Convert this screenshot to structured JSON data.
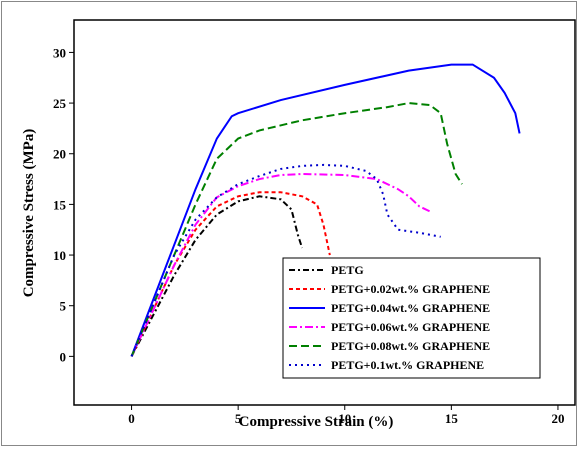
{
  "chart_data": {
    "type": "line",
    "x_label": "Compressive Strain (%)",
    "y_label": "Compressive Stress (MPa)",
    "xlim": [
      -2.7,
      20.8
    ],
    "ylim": [
      -4.8,
      33.2
    ],
    "xticks": [
      0,
      5,
      10,
      15,
      20
    ],
    "yticks": [
      0,
      5,
      10,
      15,
      20,
      25,
      30
    ],
    "legend": "lower right",
    "series": [
      {
        "name": "PETG",
        "color": "#000000",
        "dash": "6 3 2 3",
        "x": [
          0,
          1,
          2,
          3,
          4,
          5,
          6,
          7,
          7.5,
          7.8,
          8
        ],
        "values": [
          0,
          4,
          8,
          11.5,
          14,
          15.3,
          15.8,
          15.5,
          14.5,
          12,
          10.7
        ]
      },
      {
        "name": "PETG+0.02wt.% GRAPHENE",
        "color": "#ff0000",
        "dash": "4 3",
        "x": [
          0,
          1,
          2,
          3,
          4,
          5,
          6,
          7,
          8,
          8.7,
          9,
          9.2,
          9.3
        ],
        "values": [
          0,
          4.5,
          9,
          12.5,
          14.8,
          15.8,
          16.2,
          16.2,
          15.8,
          15,
          13,
          11,
          10
        ]
      },
      {
        "name": "PETG+0.04wt.% GRAPHENE",
        "color": "#0000ff",
        "dash": "none",
        "x": [
          0,
          1,
          2,
          3,
          4,
          4.7,
          5,
          7,
          10,
          13,
          15,
          16,
          17,
          17.5,
          18,
          18.2
        ],
        "values": [
          0,
          5.5,
          11,
          16.5,
          21.5,
          23.7,
          24,
          25.3,
          26.8,
          28.2,
          28.8,
          28.8,
          27.5,
          26,
          24,
          22
        ]
      },
      {
        "name": "PETG+0.06wt.% GRAPHENE",
        "color": "#ff00ff",
        "dash": "8 3 2 3",
        "x": [
          0,
          1,
          2,
          3,
          4,
          5,
          6,
          7,
          8,
          10,
          11.5,
          12.5,
          13,
          13.5,
          14
        ],
        "values": [
          0,
          4.5,
          9,
          13,
          15.7,
          16.8,
          17.5,
          17.9,
          18,
          17.9,
          17.5,
          16.5,
          15.8,
          14.8,
          14.3
        ]
      },
      {
        "name": "PETG+0.08wt.% GRAPHENE",
        "color": "#008000",
        "dash": "8 4",
        "x": [
          0,
          1,
          2,
          3,
          4,
          5,
          6,
          8,
          10,
          12,
          13,
          14,
          14.5,
          14.8,
          15.2,
          15.5
        ],
        "values": [
          0,
          5,
          10,
          15,
          19.5,
          21.5,
          22.3,
          23.3,
          24,
          24.6,
          25,
          24.8,
          24,
          21,
          18,
          17
        ]
      },
      {
        "name": "PETG+0.1wt.% GRAPHENE",
        "color": "#0000cc",
        "dash": "2 4",
        "x": [
          0,
          1,
          2,
          3,
          4,
          5,
          6,
          7,
          8,
          9,
          10,
          11,
          11.5,
          11.8,
          12,
          12.5,
          13.5,
          14.5
        ],
        "values": [
          0,
          5,
          10,
          13.5,
          15.7,
          17,
          17.8,
          18.5,
          18.8,
          18.9,
          18.8,
          18.3,
          17.5,
          16,
          14,
          12.5,
          12.2,
          11.8
        ]
      }
    ]
  }
}
